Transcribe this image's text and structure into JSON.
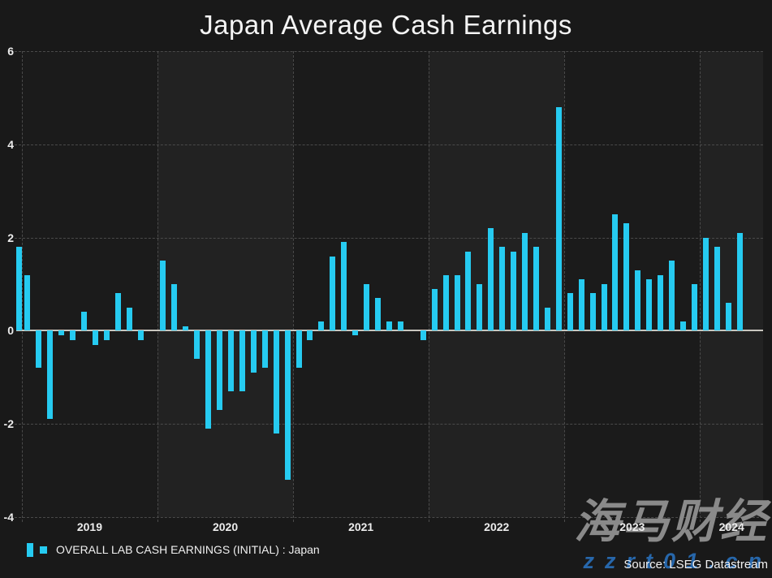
{
  "page": {
    "title": "Japan Average Cash Earnings"
  },
  "legend": {
    "label": "OVERALL LAB CASH EARNINGS (INITIAL) : Japan"
  },
  "source": {
    "text": "Source: LSEG Datastream"
  },
  "watermark": {
    "brand": "海马财经",
    "url": "zzrt01.cn"
  },
  "colors": {
    "background": "#191919",
    "band_dark": "#1b1b1b",
    "band_light": "#222222",
    "gridline": "#4a4a4a",
    "zero_line": "#c9c6bf",
    "bar": "#26cbf1",
    "text": "#ececec",
    "tick": "#777777",
    "watermark_gray": "#8a8a8a",
    "watermark_blue": "#2767ab"
  },
  "chart_data": {
    "type": "bar",
    "title": "Japan Average Cash Earnings",
    "ylabel": "",
    "xlabel": "",
    "unit": "percent (y/y)",
    "x_start": "2018-12",
    "x_frequency": "monthly",
    "ylim": [
      -4,
      6
    ],
    "yticks": [
      6,
      4,
      2,
      0,
      -2,
      -4
    ],
    "grid": "dashed",
    "legend_position": "bottom-left",
    "year_labels": [
      "2019",
      "2020",
      "2021",
      "2022",
      "2023",
      "2024"
    ],
    "series": [
      {
        "name": "OVERALL LAB CASH EARNINGS (INITIAL) : Japan",
        "values": [
          1.8,
          1.2,
          -0.8,
          -1.9,
          -0.1,
          -0.2,
          0.4,
          -0.3,
          -0.2,
          0.8,
          0.5,
          -0.2,
          0.0,
          1.5,
          1.0,
          0.1,
          -0.6,
          -2.1,
          -1.7,
          -1.3,
          -1.3,
          -0.9,
          -0.8,
          -2.2,
          -3.2,
          -0.8,
          -0.2,
          0.2,
          1.6,
          1.9,
          -0.1,
          1.0,
          0.7,
          0.2,
          0.2,
          0.0,
          -0.2,
          0.9,
          1.2,
          1.2,
          1.7,
          1.0,
          2.2,
          1.8,
          1.7,
          2.1,
          1.8,
          0.5,
          4.8,
          0.8,
          1.1,
          0.8,
          1.0,
          2.5,
          2.3,
          1.3,
          1.1,
          1.2,
          1.5,
          0.2,
          1.0,
          2.0,
          1.8,
          0.6,
          2.1
        ]
      }
    ]
  }
}
